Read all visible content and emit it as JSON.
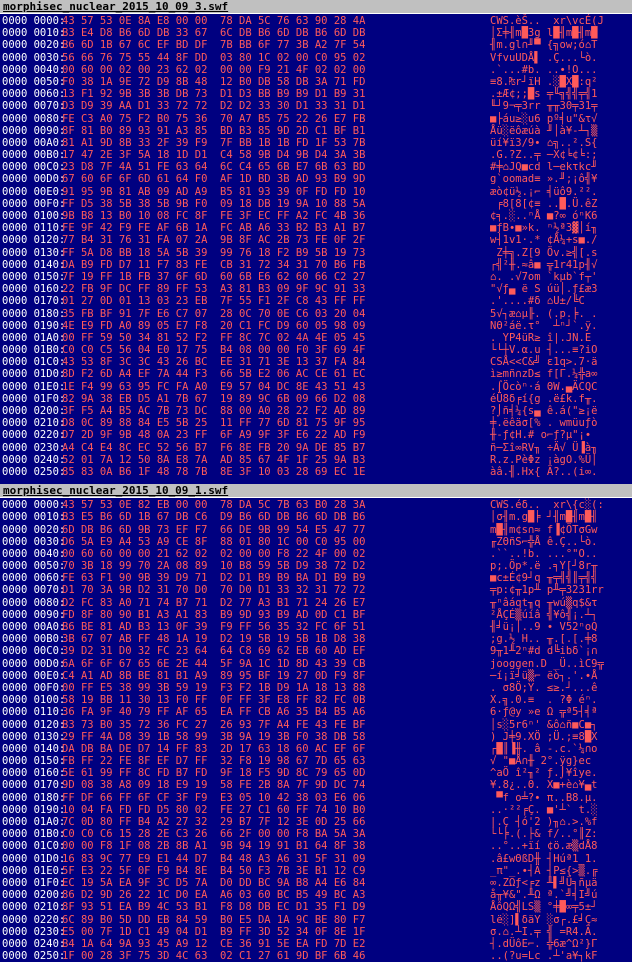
{
  "panes": [
    {
      "filename": "morphisec_nuclear_2015_10_09_3.swf",
      "rows": [
        {
          "addr": "0000 0000:",
          "hex": "43 57 53 0E 8A E8 00 00  78 DA 5C 76 63 90 28 4A",
          "asc": "CWS.èŠ..  xr\\vcÉ(J"
        },
        {
          "addr": "0000 0010:",
          "hex": "B3 E4 D8 B6 6D DB 33 67  6C DB B6 6D DB B6 6D DB",
          "asc": "│Σ╪╢m█3g l█╢m█╢m█"
        },
        {
          "addr": "0000 0020:",
          "hex": "B6 6D 1B 67 6C EF BD DF  7B BB 6F 77 3B A2 7F 54",
          "asc": "╢m.gl∩╜▀ {╗ow;ó⌂T"
        },
        {
          "addr": "0000 0030:",
          "hex": "56 66 76 75 55 44 8F DD  03 80 1C 02 00 C0 95 02",
          "asc": "VfvuUDÅ▌ .Ç...└ò."
        },
        {
          "addr": "0000 0040:",
          "hex": "00 60 00 02 00 23 62 02  00 00 F9 21 4F 02 02 00",
          "asc": ".`...#b. ..∙!O..."
        },
        {
          "addr": "0000 0050:",
          "hex": "F0 38 1A 9E 72 D9 8B 48  12 B0 DB 58 DB 3A 71 FD",
          "asc": "≡8.₧r┘ïH .░█X█:q²"
        },
        {
          "addr": "0000 0060:",
          "hex": "13 F1 92 9B 3B 3B DB 73  D1 D3 BB B9 B9 D1 B9 31",
          "asc": ".±Æ¢;;█s ╤╙╗╣╣╤╣1"
        },
        {
          "addr": "0000 0070:",
          "hex": "D3 D9 39 AA D1 33 72 72  D2 D2 33 30 D1 33 31 D1",
          "asc": "╙┘9¬╤3rr ╥╥30╤31╤"
        },
        {
          "addr": "0000 0080:",
          "hex": "FE C3 A0 75 F2 B0 75 36  70 A7 B5 75 22 26 E7 FB",
          "asc": "■├áu≥░u6 pº╡u\"&τ√"
        },
        {
          "addr": "0000 0090:",
          "hex": "8F 81 B0 89 93 91 A3 85  BD B3 85 9D 2D C1 BF B1",
          "asc": "Åü░ëôæúà ╜│à¥-┴┐▒"
        },
        {
          "addr": "0000 00A0:",
          "hex": "81 A1 9D 8B 33 2F 39 F9  7F BB 1B 1B FD 1F 53 7B",
          "asc": "üí¥ï3/9∙ ⌂╗..².S{"
        },
        {
          "addr": "0000 00B0:",
          "hex": "17 47 2E 3F 5A 18 1D D1  C4 58 9B D4 9B D4 3A 3B",
          "asc": ".G.?Z..╤ ─X¢╘¢╘:;"
        },
        {
          "addr": "0000 00C0:",
          "hex": "23 D8 7F 4A 51 FE 63 64  6C C4 65 6B E7 6B 63 BD",
          "asc": "#╪⌂JQ■cd l─ekτkc╜"
        },
        {
          "addr": "0000 00D0:",
          "hex": "67 60 6F 6F 6D 61 64 F0  AF 1D BD 3B AD 93 B9 9D",
          "asc": "g`oomad≡ ».╜;¡ô╣¥"
        },
        {
          "addr": "0000 00E0:",
          "hex": "91 95 9B 81 AB 09 AD A9  B5 81 93 39 0F FD FD 10",
          "asc": "æò¢ü½.¡⌐ ╡üô9.²²."
        },
        {
          "addr": "0000 00F0:",
          "hex": "FF D5 38 5B 38 5B 9B F0  09 18 DB 19 9A 10 88 5A",
          "asc": " ╒8[8[¢≡ ..█.Ü.êZ"
        },
        {
          "addr": "0000 0100:",
          "hex": "9B B8 13 B0 10 08 FC 8F  FE 3F EC FF A2 FC 4B 36",
          "asc": "¢╕.░..ⁿÅ ■?∞ óⁿK6"
        },
        {
          "addr": "0000 0110:",
          "hex": "FE 9F 42 F9 FE AF 6B 1A  FC AB A6 33 B2 B3 A1 B7",
          "asc": "■ƒB∙■»k. ⁿ½ª3▓│í╖"
        },
        {
          "addr": "0000 0120:",
          "hex": "77 B4 31 76 31 FA 07 2A  9B 8F AC 2B 73 FE 0F 2F",
          "asc": "w┤1v1·.* ¢Å¼+s■./"
        },
        {
          "addr": "0000 0130:",
          "hex": "FF 5A D8 BB 18 5A 5B 39  99 76 18 F2 B9 5B 19 73",
          "asc": " Z╪╗.Z[9 Öv.≥╣[.s"
        },
        {
          "addr": "0000 0140:",
          "hex": "DA B9 FD D7 11 F7 83 FE  CB 31 72 34 31 70 B6 FB",
          "asc": "┌╣²╫.≈â■ ╦1r41p╢√"
        },
        {
          "addr": "0000 0150:",
          "hex": "7F 19 FF 1B FB 37 6F 6D  60 6B E6 62 60 66 C2 27",
          "asc": "⌂. .√7om `kµb`f┬'"
        },
        {
          "addr": "0000 0160:",
          "hex": "22 FB 9F DC FF 89 FF 53  A3 81 B3 09 9F 9C 91 33",
          "asc": "\"√ƒ▄ ë S úü│.ƒ£æ3"
        },
        {
          "addr": "0000 0170:",
          "hex": "01 27 0D 01 13 03 23 EB  7F 55 F1 2F C8 43 FF FF",
          "asc": ".'....#δ ⌂U±/╚C  "
        },
        {
          "addr": "0000 0180:",
          "hex": "35 FB BF 91 7F E6 C7 07  28 0C 70 0E C6 03 20 04",
          "asc": "5√┐æ⌂µ╟. (.p.╞. ."
        },
        {
          "addr": "0000 0190:",
          "hex": "4E E9 FD A0 89 05 E7 F8  20 C1 FC D9 60 05 98 09",
          "asc": "NΘ²áë.τ°  ┴ⁿ┘`.ÿ."
        },
        {
          "addr": "0000 01A0:",
          "hex": "00 FF 59 50 34 81 52 F2  FF 8C 7C 02 4A 4E 05 45",
          "asc": ". YP4üR≥ î|.JN.E"
        },
        {
          "addr": "0000 01B0:",
          "hex": "C0 C0 C5 56 04 E0 17 75  B4 08 00 00 F0 3F 69 4F",
          "asc": "└└┼V.α.u ┤...≡?iO"
        },
        {
          "addr": "0000 01C0:",
          "hex": "43 53 8F 3C 3C 43 26 BC  EE 31 71 3E 13 37 FA 84",
          "asc": "CSÅ<<C&╝ ε1q>.7·ä"
        },
        {
          "addr": "0000 01D0:",
          "hex": "8D F2 6D A4 EF 7A 44 F3  66 5B E2 06 AC CE 61 EC",
          "asc": "ì≥mñ∩zD≤ f[Γ.¼╬a∞"
        },
        {
          "addr": "0000 01E0:",
          "hex": "1E F4 99 63 95 FC FA A0  E9 57 04 DC 8E 43 51 43",
          "asc": ".⌠Öcòⁿ·á ΘW.▄ÄCQC"
        },
        {
          "addr": "0000 01F0:",
          "hex": "82 9A 38 EB D5 A1 7B 67  19 89 9C 6B 09 66 D2 08",
          "asc": "éÜ8δ╒í{g .ë£k.f╥."
        },
        {
          "addr": "0000 0200:",
          "hex": "3F F5 A4 B5 AC 7B 73 DC  88 00 A0 28 22 F2 AD 89",
          "asc": "?⌡ñ╡¼{s▄ ê.á(\"≥¡ë"
        },
        {
          "addr": "0000 0210:",
          "hex": "D8 0C 89 88 84 E5 5B 25  11 FF 77 6D 81 75 9F 95",
          "asc": "╪.ëêäσ[% . wmüuƒò"
        },
        {
          "addr": "0000 0220:",
          "hex": "D7 2D 9F 9B 48 0A 23 FF  6F A9 9F 3F E6 22 AD F9",
          "asc": "╫-ƒ¢H.# o⌐ƒ?µ\"¡∙"
        },
        {
          "addr": "0000 0230:",
          "hex": "A4 C4 E4 8C EC 52 56 B7  F6 8E FB 20 9A DE 85 B7",
          "asc": "ñ─Σî∞RV╖ ÷Ä√ Ü▐à╖"
        },
        {
          "addr": "0000 0240:",
          "hex": "52 01 7A 12 50 8A E8 7A  AD 85 67 4F 1F 25 9A B3",
          "asc": "R.z.PèΦz ¡àgO.%Ü│"
        },
        {
          "addr": "0000 0250:",
          "hex": "85 83 0A B6 1F 48 78 7B  8E 3F 10 03 28 69 EC 1E",
          "asc": "àâ.╢.Hx{ Ä?..(i∞."
        }
      ]
    },
    {
      "filename": "morphisec_nuclear_2015_10_09_1.swf",
      "rows": [
        {
          "addr": "0000 0000:",
          "hex": "43 57 53 0E 82 EB 00 00  78 DA 5C 7B 63 B0 28 3A",
          "asc": "CWS.éδ..  xr\\{c░(:"
        },
        {
          "addr": "0000 0010:",
          "hex": "B3 E5 B6 6D 1B 67 DB C6  D9 B6 6D DB B6 6D DB B6",
          "asc": "│σ╢m.g█╞ ┘╢m█╢m█╢"
        },
        {
          "addr": "0000 0020:",
          "hex": "6D DB B6 6D 9B 73 EF F7  66 DE 9B 99 54 E5 47 77",
          "asc": "m█╢m¢s∩≈ f▐¢ÖTσGw"
        },
        {
          "addr": "0000 0030:",
          "hex": "D6 5A E9 A4 53 A9 CE 8F  88 01 80 1C 00 C0 95 00",
          "asc": "╓ZΘñS⌐╬Å ê.Ç..└ò."
        },
        {
          "addr": "0000 0040:",
          "hex": "00 60 60 00 00 21 62 02  02 00 00 F8 22 4F 00 02",
          "asc": ".``..!b. ...°\"O.."
        },
        {
          "addr": "0000 0050:",
          "hex": "70 3B 18 99 70 2A 08 89  10 B8 59 5B D9 38 72 D2",
          "asc": "p;.Öp*.ë .╕Y[┘8r╥"
        },
        {
          "addr": "0000 0060:",
          "hex": "FE 63 F1 90 9B 39 D9 71  D2 D1 B9 B9 BA D1 B9 B9",
          "asc": "■c±É¢9┘q ╥╤╣╣║╤╣╣"
        },
        {
          "addr": "0000 0070:",
          "hex": "D1 70 3A 9B D2 31 70 D0  70 D0 D1 33 32 31 72 72",
          "asc": "╤p:¢╥1p╨ p╨╤3231rr"
        },
        {
          "addr": "0000 0080:",
          "hex": "D2 FC 83 A0 71 74 B7 71  D2 77 A3 B1 71 24 26 E7",
          "asc": "╥ⁿâáqt╖q ╥wú▒q$&τ"
        },
        {
          "addr": "0000 0090:",
          "hex": "FD 8F 80 90 B1 A3 A1 83  B9 9D 93 B9 AD 0D C1 BF",
          "asc": "²ÅÇÉ▒úíâ ╣¥ô╣¡.┴┐"
        },
        {
          "addr": "0000 00A0:",
          "hex": "B6 BE 81 AD B3 13 0F 39  F9 FF 56 35 32 FC 6F 51",
          "asc": "╢╛ü¡│..9 ∙ V52ⁿoQ"
        },
        {
          "addr": "0000 00B0:",
          "hex": "3B 67 07 AB FF 48 1A 19  D2 19 5B 19 5B 1B D8 38",
          "asc": ";g.½ H.. ╥.[.[.╪8"
        },
        {
          "addr": "0000 00C0:",
          "hex": "39 D2 31 D0 32 FC 23 64  64 C8 69 62 EB 60 AD EF",
          "asc": "9╥1╨2ⁿ#d d╚ibδ`¡∩"
        },
        {
          "addr": "0000 00D0:",
          "hex": "6A 6F 6F 67 65 6E 2E 44  5F 9A 1C 1D 8D 43 39 CB",
          "asc": "jooggen.D _Ü..ìC9╦"
        },
        {
          "addr": "0000 00E0:",
          "hex": "C4 A1 AD 8B BE 81 B1 A9  89 95 BF 19 27 0D F9 8F",
          "asc": "─í¡ï╛ü▒⌐ ëò┐.'.∙Å"
        },
        {
          "addr": "0000 00F0:",
          "hex": "00 FF E5 38 99 3B 59 19  F3 F2 1B D9 1A 18 13 88",
          "asc": ". σ8Ö;Y. ≤≥.┘...ê"
        },
        {
          "addr": "0000 0100:",
          "hex": "58 19 BB 11 30 13 F0 FF  0F FF 3F E8 FF 82 FC 0B",
          "asc": "X.╗.0.≡  . ?Φ éⁿ."
        },
        {
          "addr": "0000 0110:",
          "hex": "36 FA 9F 40 79 FF AF 65  EA FF CB A6 35 B4 B5 A6",
          "asc": "6·ƒ@y »e Ω ╦ª5┤╡ª"
        },
        {
          "addr": "0000 0120:",
          "hex": "B3 73 B0 35 72 36 FC 27  26 93 7F A4 FE 43 FE BF",
          "asc": "│s░5r6ⁿ' &ô⌂ñ■C■┐"
        },
        {
          "addr": "0000 0130:",
          "hex": "29 FF 4A D8 39 1B 58 99  3B 9A 19 3B F0 38 DB 58",
          "asc": ") J╪9.XÖ ;Ü.;≡8█X"
        },
        {
          "addr": "0000 0140:",
          "hex": "DA DB BA DE D7 14 FF 83  2D 17 63 18 60 AC EF 6F",
          "asc": "┌█║▐╫. â -.c.`¼∩o"
        },
        {
          "addr": "0000 0150:",
          "hex": "FB FF 22 FE 8F EF D7 FF  32 F8 19 98 67 7D 65 63",
          "asc": "√ \"■Å∩╫ 2°.ÿg}ec"
        },
        {
          "addr": "0000 0160:",
          "hex": "5E 61 99 FF 8C FD B7 FD  9F 18 F5 9D 8C 79 65 0D",
          "asc": "^aÖ î²╖² ƒ.⌡¥îye."
        },
        {
          "addr": "0000 0170:",
          "hex": "9D 08 38 A8 09 18 E9 19  58 FE 2B 8A 7F 9D DC 74",
          "asc": "¥.8¿..Θ. X■+è⌂¥▄t"
        },
        {
          "addr": "0000 0180:",
          "hex": "FF DF 66 FF 6F CF 3F F9  E3 05 10 42 38 03 E6 06",
          "asc": " ▀f o╧?∙ π..B8.µ."
        },
        {
          "addr": "0000 0190:",
          "hex": "10 04 FA FD FD D5 80 02  FE 27 C1 60 FF 74 10 B0",
          "asc": "..·²²╒Ç. ■'┴` t.░"
        },
        {
          "addr": "0000 01A0:",
          "hex": "7C 0D 80 FF B4 A2 27 32  29 B7 7F 12 3E 0D 25 66",
          "asc": "|.Ç ┤ó'2 )╖⌂.>.%f"
        },
        {
          "addr": "0000 01B0:",
          "hex": "C0 C0 C6 15 28 2E C3 26  66 2F 00 00 F8 BA 5A 3A",
          "asc": "└└╞.(.├& f/..°║Z:"
        },
        {
          "addr": "0000 01C0:",
          "hex": "00 00 F8 1F 08 2B 8B A1  9B 94 19 91 B1 64 8F 38",
          "asc": "..°..+ïí ¢ö.æ▒dÅ8"
        },
        {
          "addr": "0000 01D0:",
          "hex": "16 83 9C 77 E9 E1 44 D7  B4 48 A3 A6 31 5F 31 09",
          "asc": ".â£wΘßD╫ ┤Húª1_1."
        },
        {
          "addr": "0000 01E0:",
          "hex": "5F E3 22 5F 0F F9 B4 8E  B4 50 F3 7B 3E B1 12 C9",
          "asc": "_π\"_.∙┤Ä ┤P≤{>▒.╔"
        },
        {
          "addr": "0000 01F0:",
          "hex": "EC 19 5A EA 9F 3C D5 7A  D0 DD BC 9A B8 A4 E6 84",
          "asc": "∞.ZΩƒ<╒z ╨▌╝Ü╕ñµä"
        },
        {
          "addr": "0000 0200:",
          "hex": "86 D2 9D 26 22 1C D0 EA  A6 03 60 BC B5 49 BC A3",
          "asc": "å╥¥&\".╨Ω ª.`╝╡I╝ú"
        },
        {
          "addr": "0000 0210:",
          "hex": "8F 93 51 EA B9 4C 53 B1  F8 D8 DB EC D1 35 F1 D9",
          "asc": "ÅôQΩ╣LS▒ °╪█∞╤5±┘"
        },
        {
          "addr": "0000 0220:",
          "hex": "6C 89 B0 5D DD EB 84 59  B0 E5 DA 1A 9C BE 80 F7",
          "asc": "lë░]▌δäY ░σ┌.£╛Ç≈"
        },
        {
          "addr": "0000 0230:",
          "hex": "E5 00 7F 1D C1 49 04 D1  B9 FF 3D 52 34 0F 8E 1F",
          "asc": "σ.⌂.┴I.╤ ╣ =R4.Ä."
        },
        {
          "addr": "0000 0240:",
          "hex": "B4 1A 64 9A 93 45 A9 12  CE 36 91 5E EA FD 7D E2",
          "asc": "┤.dÜôE⌐. ╬6æ^Ω²}Γ"
        },
        {
          "addr": "0000 0250:",
          "hex": "1F 00 28 3F 75 3D 4C 63  02 C1 27 61 9D BF 6B 46",
          "asc": "..(?u=Lc .┴'a¥┐kF"
        }
      ]
    }
  ]
}
